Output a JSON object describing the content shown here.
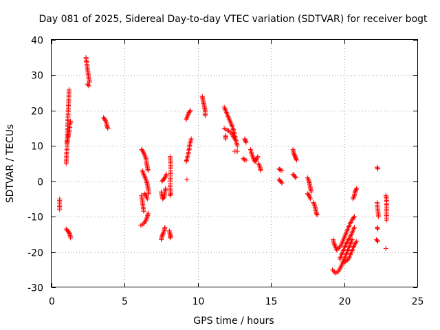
{
  "chart_data": {
    "type": "scatter",
    "title": "Day 081 of 2025, Sidereal Day-to-day VTEC variation (SDTVAR) for receiver bogt",
    "xlabel": "GPS time / hours",
    "ylabel": "SDTVAR / TECUs",
    "xlim": [
      0,
      25
    ],
    "ylim": [
      -30,
      40
    ],
    "xticks": [
      0,
      5,
      10,
      15,
      20,
      25
    ],
    "yticks": [
      -30,
      -20,
      -10,
      0,
      10,
      20,
      30,
      40
    ],
    "xtick_labels": [
      "0",
      "5",
      "10",
      "15",
      "20",
      "25"
    ],
    "ytick_labels": [
      "-30",
      "-20",
      "-10",
      "0",
      "10",
      "20",
      "30",
      "40"
    ],
    "grid": true,
    "marker": "+",
    "color": "#ff0000",
    "series": [
      {
        "name": "arc_0_5a",
        "points": [
          [
            0.55,
            -5
          ],
          [
            0.55,
            -8
          ]
        ]
      },
      {
        "name": "arc_1_0",
        "points": [
          [
            1.0,
            5
          ],
          [
            1.02,
            7
          ],
          [
            1.05,
            9
          ],
          [
            1.08,
            12
          ],
          [
            1.1,
            15
          ],
          [
            1.12,
            18
          ],
          [
            1.15,
            21
          ],
          [
            1.18,
            24
          ],
          [
            1.2,
            26
          ]
        ]
      },
      {
        "name": "arc_1_1",
        "points": [
          [
            1.05,
            11
          ],
          [
            1.1,
            12
          ],
          [
            1.15,
            13
          ],
          [
            1.2,
            14
          ],
          [
            1.25,
            16
          ],
          [
            1.3,
            17
          ]
        ]
      },
      {
        "name": "arc_1_0_low",
        "points": [
          [
            1.0,
            -13.5
          ],
          [
            1.1,
            -14
          ],
          [
            1.2,
            -14.5
          ],
          [
            1.25,
            -15
          ],
          [
            1.3,
            -16
          ]
        ]
      },
      {
        "name": "arc_2_4",
        "points": [
          [
            2.35,
            35
          ],
          [
            2.4,
            33.5
          ],
          [
            2.45,
            32
          ],
          [
            2.5,
            30.5
          ],
          [
            2.55,
            29
          ],
          [
            2.6,
            28
          ]
        ]
      },
      {
        "name": "arc_2_5b",
        "points": [
          [
            2.45,
            27.5
          ],
          [
            2.55,
            27
          ]
        ]
      },
      {
        "name": "arc_3_6",
        "points": [
          [
            3.55,
            18
          ],
          [
            3.65,
            17.5
          ],
          [
            3.75,
            16.5
          ],
          [
            3.8,
            15.5
          ],
          [
            3.85,
            15
          ]
        ]
      },
      {
        "name": "arc_6_2a",
        "points": [
          [
            6.15,
            9
          ],
          [
            6.25,
            8.5
          ],
          [
            6.35,
            7.5
          ],
          [
            6.45,
            6.5
          ],
          [
            6.5,
            5
          ],
          [
            6.55,
            4
          ],
          [
            6.6,
            3
          ]
        ]
      },
      {
        "name": "arc_6_2b",
        "points": [
          [
            6.2,
            3
          ],
          [
            6.3,
            2
          ],
          [
            6.4,
            1
          ],
          [
            6.5,
            0
          ],
          [
            6.55,
            -1
          ],
          [
            6.6,
            -2
          ],
          [
            6.65,
            -3.5
          ]
        ]
      },
      {
        "name": "arc_6_2c",
        "points": [
          [
            6.15,
            -4
          ],
          [
            6.2,
            -5.5
          ],
          [
            6.25,
            -7
          ],
          [
            6.3,
            -8.5
          ]
        ]
      },
      {
        "name": "arc_6_4d",
        "points": [
          [
            6.35,
            -3.5
          ],
          [
            6.45,
            -4
          ],
          [
            6.55,
            -5
          ]
        ]
      },
      {
        "name": "arc_6_1e",
        "points": [
          [
            6.1,
            -12.5
          ],
          [
            6.3,
            -12
          ],
          [
            6.45,
            -11
          ],
          [
            6.55,
            -10
          ],
          [
            6.6,
            -9
          ]
        ]
      },
      {
        "name": "arc_7_5a",
        "points": [
          [
            7.5,
            -3
          ],
          [
            7.55,
            -4
          ],
          [
            7.6,
            -5
          ],
          [
            7.7,
            -4.5
          ],
          [
            7.75,
            -3
          ],
          [
            7.8,
            -2
          ]
        ]
      },
      {
        "name": "arc_7_5b",
        "points": [
          [
            7.55,
            0
          ],
          [
            7.65,
            0.5
          ],
          [
            7.75,
            1
          ],
          [
            7.85,
            2
          ]
        ]
      },
      {
        "name": "arc_7_5c",
        "points": [
          [
            7.5,
            -16.5
          ],
          [
            7.55,
            -15.5
          ],
          [
            7.6,
            -15
          ],
          [
            7.7,
            -14
          ],
          [
            7.75,
            -13
          ]
        ]
      },
      {
        "name": "arc_8_1",
        "points": [
          [
            8.1,
            7
          ],
          [
            8.15,
            4.5
          ],
          [
            8.1,
            -2
          ],
          [
            8.15,
            -3.5
          ],
          [
            8.1,
            -4
          ]
        ]
      },
      {
        "name": "arc_8_2b",
        "points": [
          [
            8.05,
            -14
          ],
          [
            8.1,
            -15
          ],
          [
            8.15,
            -15.5
          ],
          [
            8.1,
            -16
          ]
        ]
      },
      {
        "name": "arc_9_2a",
        "points": [
          [
            9.2,
            17.5
          ],
          [
            9.3,
            18.5
          ],
          [
            9.4,
            19.5
          ],
          [
            9.5,
            20
          ]
        ]
      },
      {
        "name": "arc_9_2b",
        "points": [
          [
            9.2,
            5.5
          ],
          [
            9.3,
            7
          ],
          [
            9.4,
            9
          ],
          [
            9.45,
            10.5
          ],
          [
            9.55,
            12
          ]
        ]
      },
      {
        "name": "arc_9_2c",
        "points": [
          [
            9.25,
            0.5
          ]
        ]
      },
      {
        "name": "arc_10_3",
        "points": [
          [
            10.3,
            24
          ],
          [
            10.35,
            23
          ],
          [
            10.4,
            22
          ],
          [
            10.45,
            21
          ],
          [
            10.5,
            20
          ],
          [
            10.5,
            18.5
          ]
        ]
      },
      {
        "name": "arc_11_8",
        "points": [
          [
            11.8,
            21
          ],
          [
            11.95,
            19.5
          ],
          [
            12.1,
            18
          ],
          [
            12.25,
            16.5
          ],
          [
            12.4,
            15
          ],
          [
            12.5,
            13.5
          ],
          [
            12.6,
            11.5
          ],
          [
            12.7,
            10
          ]
        ]
      },
      {
        "name": "arc_12_0b",
        "points": [
          [
            11.8,
            15
          ],
          [
            12.0,
            14.5
          ],
          [
            12.2,
            14
          ],
          [
            12.4,
            13
          ],
          [
            12.5,
            12
          ]
        ]
      },
      {
        "name": "arc_11_9c",
        "points": [
          [
            11.9,
            13
          ],
          [
            11.9,
            12
          ]
        ]
      },
      {
        "name": "arc_12_6d",
        "points": [
          [
            12.5,
            8.5
          ],
          [
            12.6,
            8.5
          ],
          [
            12.7,
            8.5
          ]
        ]
      },
      {
        "name": "arc_13_2",
        "points": [
          [
            13.2,
            12
          ],
          [
            13.25,
            11.5
          ],
          [
            13.3,
            11
          ]
        ]
      },
      {
        "name": "arc_13_2b",
        "points": [
          [
            13.1,
            6.5
          ],
          [
            13.2,
            6
          ],
          [
            13.3,
            6
          ]
        ]
      },
      {
        "name": "arc_13_6",
        "points": [
          [
            13.6,
            9
          ],
          [
            13.7,
            7.5
          ],
          [
            13.8,
            6.5
          ],
          [
            13.9,
            5.5
          ],
          [
            14.0,
            6
          ],
          [
            14.1,
            7
          ]
        ]
      },
      {
        "name": "arc_14_2",
        "points": [
          [
            14.15,
            5
          ],
          [
            14.25,
            4
          ],
          [
            14.3,
            3
          ]
        ]
      },
      {
        "name": "arc_15_6a",
        "points": [
          [
            15.55,
            3.5
          ],
          [
            15.65,
            3.2
          ],
          [
            15.75,
            3
          ]
        ]
      },
      {
        "name": "arc_15_6b",
        "points": [
          [
            15.55,
            0.5
          ],
          [
            15.65,
            0
          ],
          [
            15.75,
            -0.5
          ]
        ]
      },
      {
        "name": "arc_16_5a",
        "points": [
          [
            16.5,
            9
          ],
          [
            16.55,
            8
          ],
          [
            16.6,
            7.5
          ],
          [
            16.65,
            7
          ],
          [
            16.7,
            6.5
          ],
          [
            16.75,
            6
          ]
        ]
      },
      {
        "name": "arc_16_5b",
        "points": [
          [
            16.5,
            2
          ],
          [
            16.6,
            1.5
          ],
          [
            16.7,
            1
          ]
        ]
      },
      {
        "name": "arc_17_5a",
        "points": [
          [
            17.5,
            1
          ],
          [
            17.6,
            0
          ],
          [
            17.65,
            -1
          ],
          [
            17.7,
            -2
          ],
          [
            17.75,
            -3
          ]
        ]
      },
      {
        "name": "arc_17_5b",
        "points": [
          [
            17.5,
            -3.5
          ],
          [
            17.6,
            -4
          ],
          [
            17.7,
            -5
          ]
        ]
      },
      {
        "name": "arc_18_0",
        "points": [
          [
            17.9,
            -6
          ],
          [
            18.0,
            -7
          ],
          [
            18.05,
            -8
          ],
          [
            18.1,
            -9
          ],
          [
            18.15,
            -9.5
          ]
        ]
      },
      {
        "name": "arc_19_4a",
        "points": [
          [
            19.25,
            -16.5
          ],
          [
            19.3,
            -17.5
          ],
          [
            19.4,
            -18.5
          ],
          [
            19.5,
            -19.5
          ]
        ]
      },
      {
        "name": "arc_19_2b",
        "points": [
          [
            19.2,
            -25
          ],
          [
            19.4,
            -26
          ],
          [
            19.6,
            -25.5
          ],
          [
            19.8,
            -24
          ],
          [
            20.0,
            -22
          ],
          [
            20.2,
            -20
          ],
          [
            20.4,
            -18
          ],
          [
            20.55,
            -16.5
          ]
        ]
      },
      {
        "name": "arc_19_6c",
        "points": [
          [
            19.6,
            -19
          ],
          [
            19.8,
            -18
          ],
          [
            20.0,
            -16
          ],
          [
            20.2,
            -14
          ],
          [
            20.4,
            -12
          ],
          [
            20.6,
            -10.5
          ],
          [
            20.7,
            -10
          ]
        ]
      },
      {
        "name": "arc_19_7d",
        "points": [
          [
            19.7,
            -22
          ],
          [
            19.9,
            -20
          ],
          [
            20.1,
            -18
          ],
          [
            20.3,
            -16.5
          ],
          [
            20.5,
            -15
          ],
          [
            20.7,
            -13
          ]
        ]
      },
      {
        "name": "arc_20_0e",
        "points": [
          [
            20.0,
            -23
          ],
          [
            20.3,
            -22
          ],
          [
            20.5,
            -20
          ],
          [
            20.7,
            -18
          ],
          [
            20.85,
            -17
          ]
        ]
      },
      {
        "name": "arc_20_6f",
        "points": [
          [
            20.6,
            -5
          ],
          [
            20.7,
            -4
          ],
          [
            20.75,
            -3
          ],
          [
            20.8,
            -2.5
          ],
          [
            20.85,
            -2
          ]
        ]
      },
      {
        "name": "arc_22_3a",
        "points": [
          [
            22.25,
            4
          ],
          [
            22.3,
            3.5
          ]
        ]
      },
      {
        "name": "arc_22_3b",
        "points": [
          [
            22.25,
            -6
          ],
          [
            22.3,
            -8
          ],
          [
            22.35,
            -10
          ]
        ]
      },
      {
        "name": "arc_22_3c",
        "points": [
          [
            22.25,
            -13
          ],
          [
            22.3,
            -13.5
          ]
        ]
      },
      {
        "name": "arc_22_3d",
        "points": [
          [
            22.2,
            -16.5
          ],
          [
            22.3,
            -17
          ]
        ]
      },
      {
        "name": "arc_22_8a",
        "points": [
          [
            22.85,
            -4
          ],
          [
            22.9,
            -5
          ],
          [
            22.9,
            -7
          ],
          [
            22.9,
            -11
          ]
        ]
      },
      {
        "name": "arc_22_9b",
        "points": [
          [
            22.85,
            -19
          ]
        ]
      }
    ]
  }
}
